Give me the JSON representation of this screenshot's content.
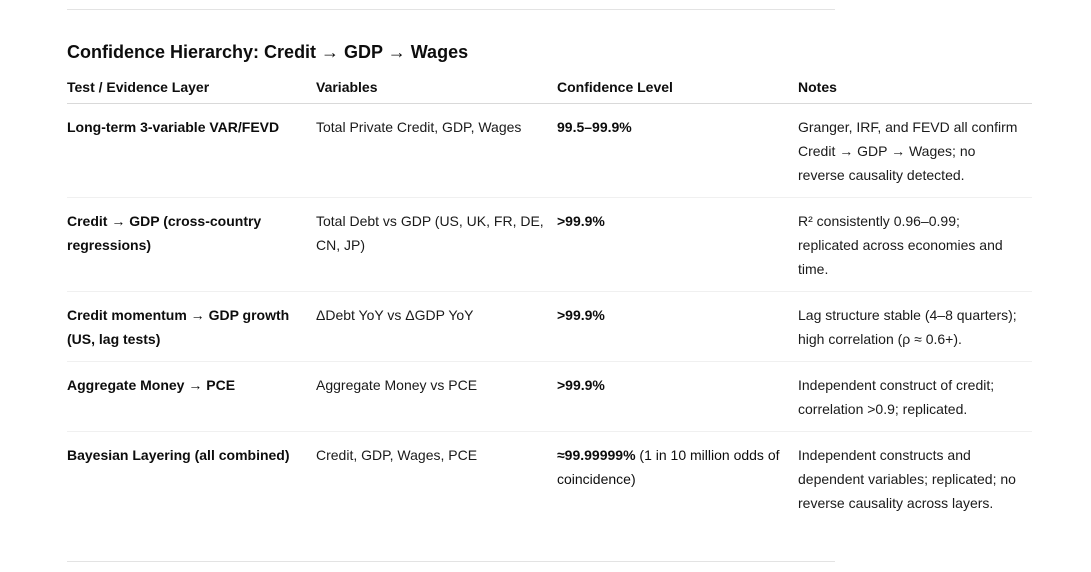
{
  "heading": "Confidence Hierarchy: Credit → GDP → Wages",
  "table": {
    "headers": [
      "Test / Evidence Layer",
      "Variables",
      "Confidence Level",
      "Notes"
    ],
    "rows": [
      {
        "test": "Long-term 3-variable VAR/FEVD",
        "variables": "Total Private Credit, GDP, Wages",
        "confidence": "99.5–99.9%",
        "confidence_extra": "",
        "notes": "Granger, IRF, and FEVD all confirm Credit → GDP → Wages; no reverse causality detected."
      },
      {
        "test": "Credit → GDP (cross-country regressions)",
        "variables": "Total Debt vs GDP (US, UK, FR, DE, CN, JP)",
        "confidence": ">99.9%",
        "confidence_extra": "",
        "notes": "R² consistently 0.96–0.99; replicated across economies and time."
      },
      {
        "test": "Credit momentum → GDP growth (US, lag tests)",
        "variables": "ΔDebt YoY vs ΔGDP YoY",
        "confidence": ">99.9%",
        "confidence_extra": "",
        "notes": "Lag structure stable (4–8 quarters); high correlation (ρ ≈ 0.6+)."
      },
      {
        "test": "Aggregate Money → PCE",
        "variables": "Aggregate Money vs PCE",
        "confidence": ">99.9%",
        "confidence_extra": "",
        "notes": "Independent construct of credit; correlation >0.9; replicated."
      },
      {
        "test": "Bayesian Layering (all combined)",
        "variables": "Credit, GDP, Wages, PCE",
        "confidence": "≈99.99999%",
        "confidence_extra": " (1 in 10 million odds of coincidence)",
        "notes": "Independent constructs and dependent variables; replicated; no reverse causality across layers."
      }
    ]
  }
}
